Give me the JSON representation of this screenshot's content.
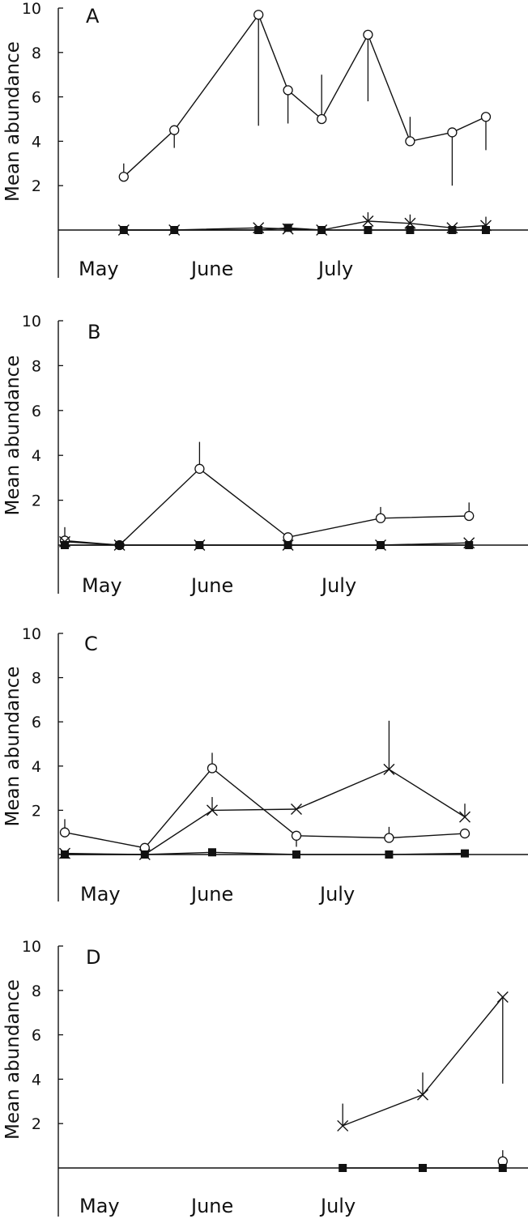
{
  "chart_data": [
    {
      "type": "line",
      "panel_label": "A",
      "ylabel": "Mean abundance",
      "ylim": [
        0,
        10
      ],
      "y_ticks": [
        "2",
        "4",
        "6",
        "8",
        "10"
      ],
      "x_labels": [
        "May",
        "June",
        "July"
      ],
      "series": [
        {
          "marker": "circle",
          "x": [
            0.7,
            1.3,
            2.3,
            2.65,
            3.05,
            3.6,
            4.1,
            4.6,
            5.0
          ],
          "values": [
            2.4,
            4.5,
            9.7,
            6.3,
            5.0,
            8.8,
            4.0,
            4.4,
            5.1
          ],
          "err_up": [
            0.6,
            0,
            0,
            0,
            2.0,
            0,
            1.1,
            0,
            0
          ],
          "err_down": [
            0,
            0.8,
            5.0,
            1.5,
            0,
            3.0,
            0,
            2.4,
            1.5
          ]
        },
        {
          "marker": "cross",
          "x": [
            0.7,
            1.3,
            2.3,
            2.65,
            3.05,
            3.6,
            4.1,
            4.6,
            5.0
          ],
          "values": [
            0,
            0,
            0.1,
            0.05,
            0,
            0.4,
            0.3,
            0.1,
            0.2
          ],
          "err_up": [
            0,
            0,
            0,
            0,
            0,
            0.4,
            0.4,
            0,
            0.4
          ],
          "err_down": [
            0,
            0,
            0,
            0,
            0,
            0,
            0,
            0,
            0
          ]
        },
        {
          "marker": "square",
          "x": [
            0.7,
            1.3,
            2.3,
            2.65,
            3.05,
            3.6,
            4.1,
            4.6,
            5.0
          ],
          "values": [
            0,
            0,
            0,
            0.1,
            0,
            0,
            0,
            0,
            0
          ]
        }
      ]
    },
    {
      "type": "line",
      "panel_label": "B",
      "ylabel": "Mean abundance",
      "ylim": [
        0,
        10
      ],
      "y_ticks": [
        "2",
        "4",
        "6",
        "8",
        "10"
      ],
      "x_labels": [
        "May",
        "June",
        "July"
      ],
      "series": [
        {
          "marker": "circle",
          "x": [
            0.0,
            0.65,
            1.6,
            2.65,
            3.75,
            4.8
          ],
          "values": [
            0.2,
            0.0,
            3.4,
            0.35,
            1.2,
            1.3
          ],
          "err_up": [
            0.6,
            0,
            1.2,
            0,
            0.5,
            0.6
          ],
          "err_down": [
            0,
            0,
            0,
            0.3,
            0,
            0
          ]
        },
        {
          "marker": "cross",
          "x": [
            0.0,
            0.65,
            1.6,
            2.65,
            3.75,
            4.8
          ],
          "values": [
            0.15,
            0,
            0,
            0,
            0,
            0.1
          ]
        },
        {
          "marker": "square",
          "x": [
            0.0,
            0.65,
            1.6,
            2.65,
            3.75,
            4.8
          ],
          "values": [
            0,
            0,
            0,
            0,
            0,
            0
          ]
        }
      ]
    },
    {
      "type": "line",
      "panel_label": "C",
      "ylabel": "Mean abundance",
      "ylim": [
        0,
        10
      ],
      "y_ticks": [
        "2",
        "4",
        "6",
        "8",
        "10"
      ],
      "x_labels": [
        "May",
        "June",
        "July"
      ],
      "series": [
        {
          "marker": "circle",
          "x": [
            0.0,
            0.95,
            1.75,
            2.75,
            3.85,
            4.75
          ],
          "values": [
            1.0,
            0.3,
            3.9,
            0.85,
            0.75,
            0.95
          ],
          "err_up": [
            0.6,
            0,
            0.7,
            0,
            0.5,
            0
          ],
          "err_down": [
            0,
            0,
            0,
            0.5,
            0,
            0
          ]
        },
        {
          "marker": "cross",
          "x": [
            0.0,
            0.95,
            1.75,
            2.75,
            3.85,
            4.75
          ],
          "values": [
            0.05,
            0,
            2.0,
            2.05,
            3.85,
            1.7
          ],
          "err_up": [
            0,
            0,
            0.6,
            0,
            2.2,
            0.6
          ],
          "err_down": [
            0,
            0,
            0,
            0,
            0,
            0
          ]
        },
        {
          "marker": "square",
          "x": [
            0.0,
            0.95,
            1.75,
            2.75,
            3.85,
            4.75
          ],
          "values": [
            0,
            0,
            0.1,
            0,
            0,
            0.05
          ]
        }
      ]
    },
    {
      "type": "line",
      "panel_label": "D",
      "ylabel": "Mean abundance",
      "ylim": [
        0,
        10
      ],
      "y_ticks": [
        "2",
        "4",
        "6",
        "8",
        "10"
      ],
      "x_labels": [
        "May",
        "June",
        "July"
      ],
      "series": [
        {
          "marker": "cross",
          "x": [
            3.3,
            4.25,
            5.2
          ],
          "values": [
            1.9,
            3.3,
            7.7
          ],
          "err_up": [
            1.0,
            1.0,
            0
          ],
          "err_down": [
            0,
            0,
            3.9
          ]
        },
        {
          "marker": "circle",
          "x": [
            5.2
          ],
          "values": [
            0.3
          ],
          "err_up": [
            0.5
          ],
          "err_down": [
            0
          ]
        },
        {
          "marker": "square",
          "x": [
            3.3,
            4.25,
            5.2
          ],
          "values": [
            0,
            0,
            0
          ]
        }
      ]
    }
  ]
}
